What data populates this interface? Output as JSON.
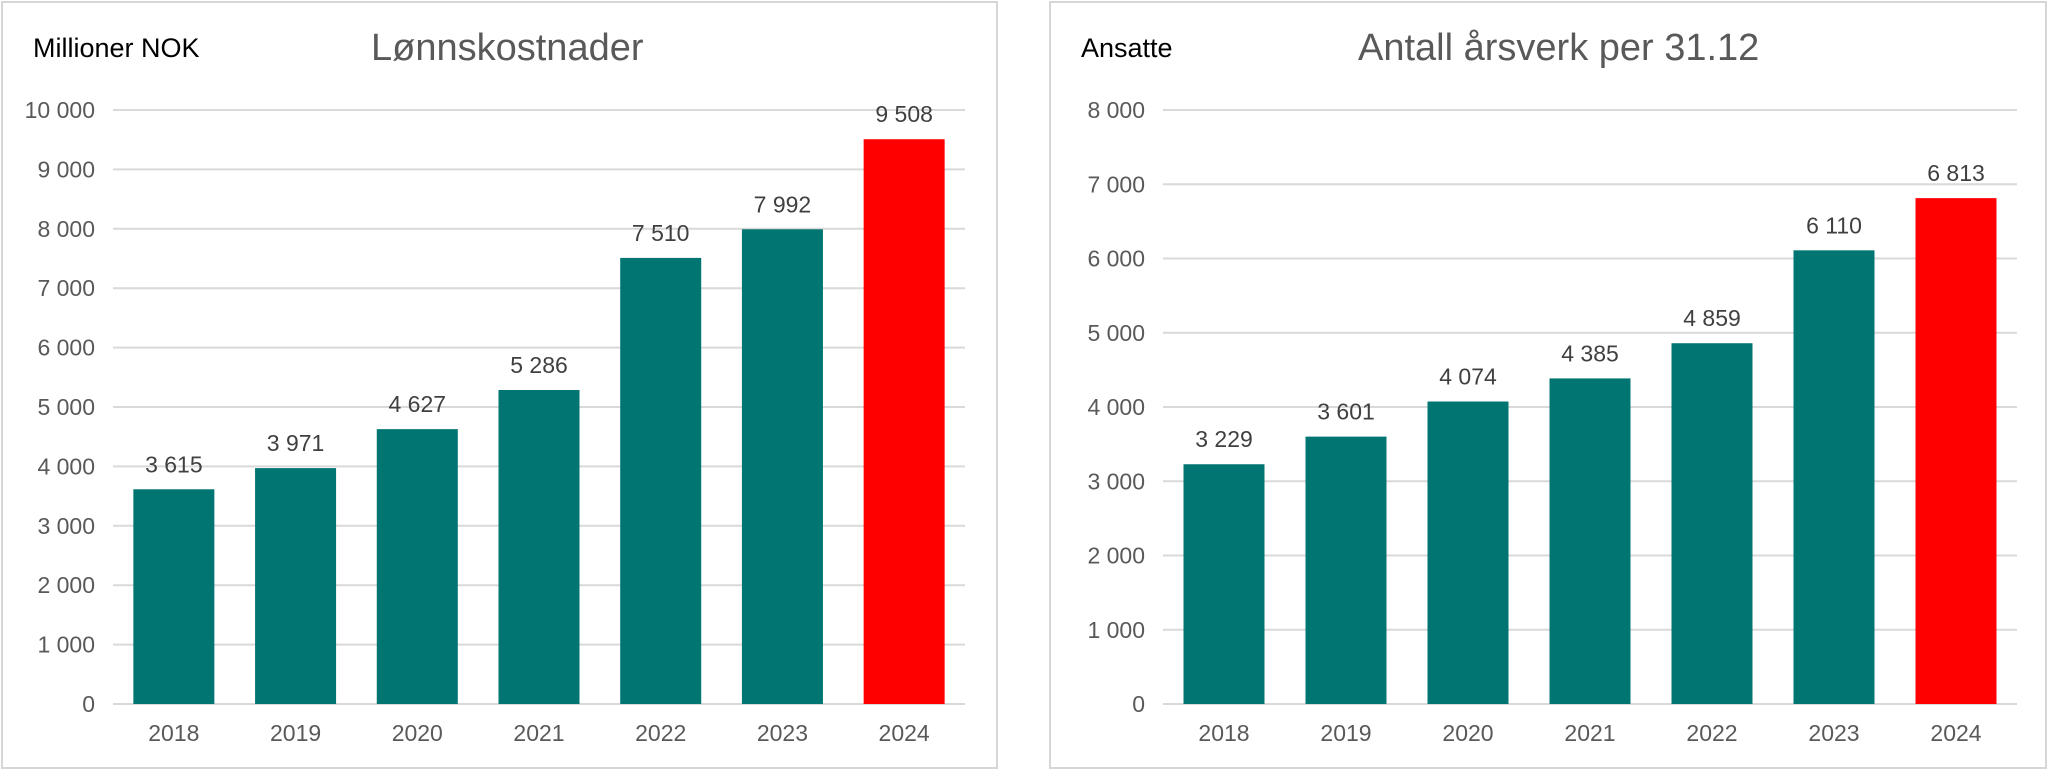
{
  "colors": {
    "bar": "#007571",
    "highlight": "#ff0000",
    "grid": "#d9d9d9",
    "axis_text": "#595959"
  },
  "chart_data": [
    {
      "type": "bar",
      "title": "Lønnskostnader",
      "ylabel": "Millioner NOK",
      "xlabel": "",
      "categories": [
        "2018",
        "2019",
        "2020",
        "2021",
        "2022",
        "2023",
        "2024"
      ],
      "values": [
        3615,
        3971,
        4627,
        5286,
        7510,
        7992,
        9508
      ],
      "value_labels": [
        "3 615",
        "3 971",
        "4 627",
        "5 286",
        "7 510",
        "7 992",
        "9 508"
      ],
      "highlight_index": 6,
      "ylim": [
        0,
        10000
      ],
      "yticks": [
        0,
        1000,
        2000,
        3000,
        4000,
        5000,
        6000,
        7000,
        8000,
        9000,
        10000
      ],
      "ytick_labels": [
        "0",
        "1 000",
        "2 000",
        "3 000",
        "4 000",
        "5 000",
        "6 000",
        "7 000",
        "8 000",
        "9 000",
        "10 000"
      ],
      "grid": true,
      "legend": "none"
    },
    {
      "type": "bar",
      "title": "Antall årsverk per 31.12",
      "ylabel": "Ansatte",
      "xlabel": "",
      "categories": [
        "2018",
        "2019",
        "2020",
        "2021",
        "2022",
        "2023",
        "2024"
      ],
      "values": [
        3229,
        3601,
        4074,
        4385,
        4859,
        6110,
        6813
      ],
      "value_labels": [
        "3 229",
        "3 601",
        "4 074",
        "4 385",
        "4 859",
        "6 110",
        "6 813"
      ],
      "highlight_index": 6,
      "ylim": [
        0,
        8000
      ],
      "yticks": [
        0,
        1000,
        2000,
        3000,
        4000,
        5000,
        6000,
        7000,
        8000
      ],
      "ytick_labels": [
        "0",
        "1 000",
        "2 000",
        "3 000",
        "4 000",
        "5 000",
        "6 000",
        "7 000",
        "8 000"
      ],
      "grid": true,
      "legend": "none"
    }
  ]
}
